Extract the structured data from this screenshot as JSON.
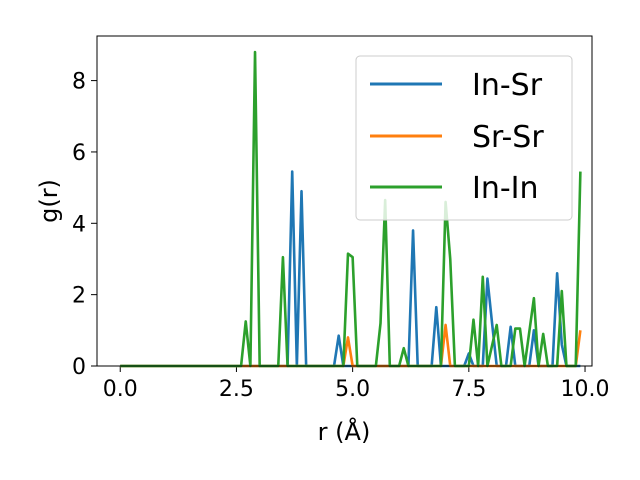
{
  "chart_data": {
    "type": "line",
    "title": "",
    "xlabel": "r (Å)",
    "ylabel": "g(r)",
    "xlim": [
      -0.5,
      10.15
    ],
    "ylim": [
      0,
      9.25
    ],
    "xticks": [
      0.0,
      2.5,
      5.0,
      7.5,
      10.0
    ],
    "xtick_labels": [
      "0.0",
      "2.5",
      "5.0",
      "7.5",
      "10.0"
    ],
    "yticks": [
      0,
      2,
      4,
      6,
      8
    ],
    "ytick_labels": [
      "0",
      "2",
      "4",
      "6",
      "8"
    ],
    "grid": false,
    "legend": "top-right",
    "series": [
      {
        "name": "In-Sr",
        "color": "#1f77b4",
        "points": [
          [
            0,
            0
          ],
          [
            3.5,
            0
          ],
          [
            3.6,
            0
          ],
          [
            3.7,
            5.45
          ],
          [
            3.8,
            0
          ],
          [
            3.9,
            4.9
          ],
          [
            4.0,
            0
          ],
          [
            4.6,
            0
          ],
          [
            4.7,
            0.85
          ],
          [
            4.8,
            0
          ],
          [
            6.2,
            0
          ],
          [
            6.3,
            3.8
          ],
          [
            6.4,
            0
          ],
          [
            6.7,
            0
          ],
          [
            6.8,
            1.65
          ],
          [
            6.9,
            0
          ],
          [
            7.4,
            0
          ],
          [
            7.5,
            0.35
          ],
          [
            7.6,
            0
          ],
          [
            7.8,
            0
          ],
          [
            7.9,
            2.45
          ],
          [
            8.0,
            1.2
          ],
          [
            8.1,
            0
          ],
          [
            8.3,
            0
          ],
          [
            8.4,
            1.1
          ],
          [
            8.5,
            0
          ],
          [
            8.8,
            0
          ],
          [
            8.9,
            1.0
          ],
          [
            9.0,
            0
          ],
          [
            9.3,
            0
          ],
          [
            9.4,
            2.6
          ],
          [
            9.5,
            0.6
          ],
          [
            9.6,
            0
          ],
          [
            9.9,
            0
          ]
        ]
      },
      {
        "name": "Sr-Sr",
        "color": "#ff7f0e",
        "points": [
          [
            0,
            0
          ],
          [
            4.8,
            0
          ],
          [
            4.9,
            0.8
          ],
          [
            5.0,
            0
          ],
          [
            6.9,
            0
          ],
          [
            7.0,
            1.15
          ],
          [
            7.1,
            0
          ],
          [
            9.8,
            0
          ],
          [
            9.9,
            1.0
          ]
        ]
      },
      {
        "name": "In-In",
        "color": "#2ca02c",
        "points": [
          [
            0,
            0
          ],
          [
            2.6,
            0
          ],
          [
            2.7,
            1.25
          ],
          [
            2.8,
            0
          ],
          [
            2.9,
            8.8
          ],
          [
            3.0,
            0
          ],
          [
            3.4,
            0
          ],
          [
            3.5,
            3.05
          ],
          [
            3.6,
            0
          ],
          [
            4.8,
            0
          ],
          [
            4.9,
            3.15
          ],
          [
            5.0,
            3.05
          ],
          [
            5.1,
            0
          ],
          [
            5.5,
            0
          ],
          [
            5.6,
            1.2
          ],
          [
            5.7,
            4.65
          ],
          [
            5.8,
            0
          ],
          [
            6.0,
            0
          ],
          [
            6.1,
            0.5
          ],
          [
            6.2,
            0
          ],
          [
            6.9,
            0
          ],
          [
            7.0,
            4.6
          ],
          [
            7.1,
            3.0
          ],
          [
            7.2,
            0
          ],
          [
            7.5,
            0
          ],
          [
            7.6,
            1.3
          ],
          [
            7.7,
            0
          ],
          [
            7.8,
            2.5
          ],
          [
            7.9,
            0
          ],
          [
            8.1,
            1.15
          ],
          [
            8.2,
            0
          ],
          [
            8.4,
            0
          ],
          [
            8.5,
            1.05
          ],
          [
            8.6,
            1.05
          ],
          [
            8.7,
            0
          ],
          [
            8.9,
            1.9
          ],
          [
            9.0,
            0
          ],
          [
            9.1,
            0.9
          ],
          [
            9.2,
            0
          ],
          [
            9.4,
            0
          ],
          [
            9.5,
            2.1
          ],
          [
            9.6,
            0
          ],
          [
            9.7,
            0
          ],
          [
            9.8,
            0
          ],
          [
            9.9,
            5.45
          ]
        ]
      }
    ]
  }
}
